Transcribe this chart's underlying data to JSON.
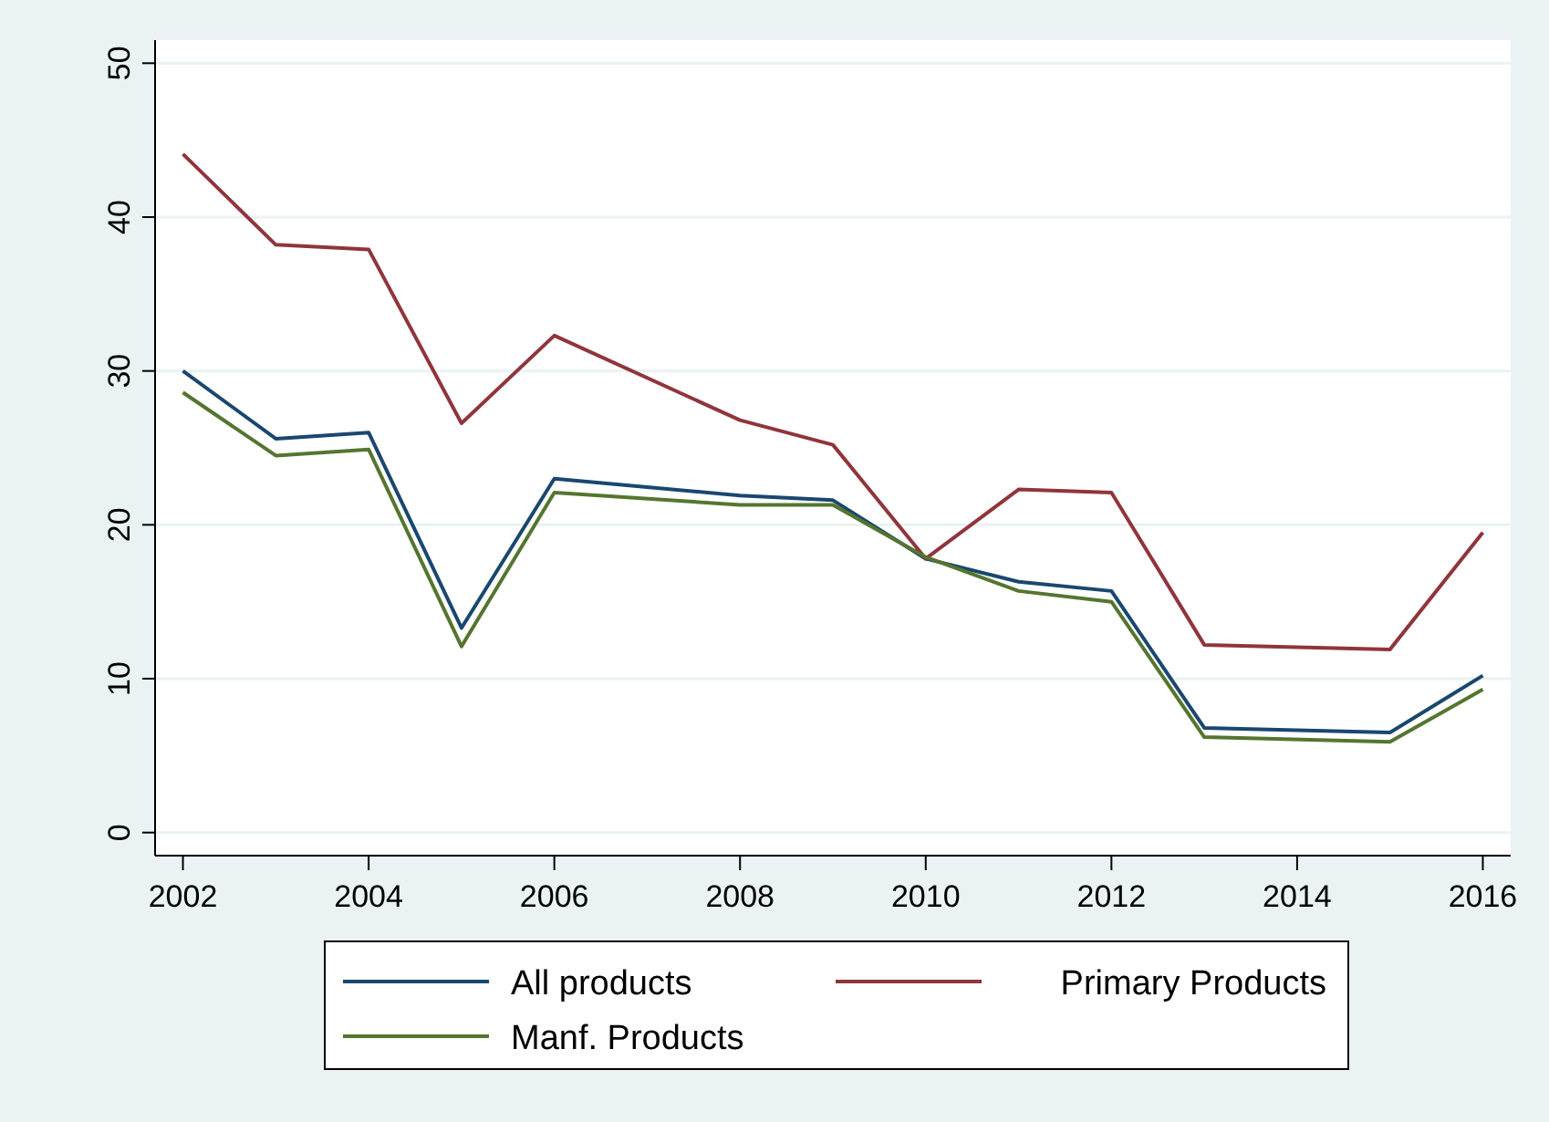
{
  "chart_data": {
    "type": "line",
    "x": [
      2002,
      2003,
      2004,
      2005,
      2006,
      2008,
      2009,
      2010,
      2011,
      2012,
      2013,
      2015,
      2016
    ],
    "series": [
      {
        "name": "All products",
        "color": "#1a476f",
        "values": [
          30.0,
          25.6,
          26.0,
          13.3,
          23.0,
          21.9,
          21.6,
          17.8,
          16.3,
          15.7,
          6.8,
          6.5,
          10.2
        ]
      },
      {
        "name": "Primary Products",
        "color": "#90353b",
        "values": [
          44.1,
          38.2,
          37.9,
          26.6,
          32.3,
          26.8,
          25.2,
          17.8,
          22.3,
          22.1,
          12.2,
          11.9,
          19.5
        ]
      },
      {
        "name": "Manf. Products",
        "color": "#55752f",
        "values": [
          28.6,
          24.5,
          24.9,
          12.1,
          22.1,
          21.3,
          21.3,
          17.9,
          15.7,
          15.0,
          6.2,
          5.9,
          9.3
        ]
      }
    ],
    "xlim": [
      2001.7,
      2016.3
    ],
    "xticks": [
      2002,
      2004,
      2006,
      2008,
      2010,
      2012,
      2014,
      2016
    ],
    "ylim": [
      -1.5,
      51.5
    ],
    "yticks": [
      0,
      10,
      20,
      30,
      40,
      50
    ],
    "grid": "y",
    "legend": "bottom",
    "marker": "none",
    "line_style": "solid"
  }
}
